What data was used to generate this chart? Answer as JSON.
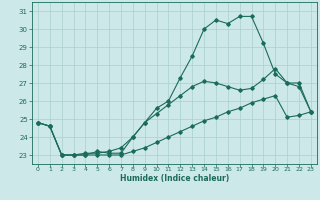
{
  "xlabel": "Humidex (Indice chaleur)",
  "xlim": [
    -0.5,
    23.5
  ],
  "ylim": [
    22.5,
    31.5
  ],
  "xticks": [
    0,
    1,
    2,
    3,
    4,
    5,
    6,
    7,
    8,
    9,
    10,
    11,
    12,
    13,
    14,
    15,
    16,
    17,
    18,
    19,
    20,
    21,
    22,
    23
  ],
  "yticks": [
    23,
    24,
    25,
    26,
    27,
    28,
    29,
    30,
    31
  ],
  "bg_color": "#cde8e8",
  "grid_color": "#aacfcf",
  "line_color": "#1a6b5a",
  "line1_x": [
    0,
    1,
    2,
    3,
    4,
    5,
    6,
    7,
    8,
    9,
    10,
    11,
    12,
    13,
    14,
    15,
    16,
    17,
    18,
    19,
    20,
    21,
    22,
    23
  ],
  "line1_y": [
    24.8,
    24.6,
    23.0,
    23.0,
    23.0,
    23.2,
    23.1,
    23.1,
    24.0,
    24.8,
    25.6,
    26.0,
    27.3,
    28.5,
    30.0,
    30.5,
    30.3,
    30.7,
    30.7,
    29.2,
    27.5,
    27.0,
    27.0,
    25.4
  ],
  "line2_x": [
    0,
    1,
    2,
    3,
    4,
    5,
    6,
    7,
    8,
    9,
    10,
    11,
    12,
    13,
    14,
    15,
    16,
    17,
    18,
    19,
    20,
    21,
    22,
    23
  ],
  "line2_y": [
    24.8,
    24.6,
    23.0,
    23.0,
    23.1,
    23.1,
    23.2,
    23.4,
    24.0,
    24.8,
    25.3,
    25.8,
    26.3,
    26.8,
    27.1,
    27.0,
    26.8,
    26.6,
    26.7,
    27.2,
    27.8,
    27.0,
    26.8,
    25.4
  ],
  "line3_x": [
    0,
    1,
    2,
    3,
    4,
    5,
    6,
    7,
    8,
    9,
    10,
    11,
    12,
    13,
    14,
    15,
    16,
    17,
    18,
    19,
    20,
    21,
    22,
    23
  ],
  "line3_y": [
    24.8,
    24.6,
    23.0,
    23.0,
    23.0,
    23.0,
    23.0,
    23.0,
    23.2,
    23.4,
    23.7,
    24.0,
    24.3,
    24.6,
    24.9,
    25.1,
    25.4,
    25.6,
    25.9,
    26.1,
    26.3,
    25.1,
    25.2,
    25.4
  ]
}
